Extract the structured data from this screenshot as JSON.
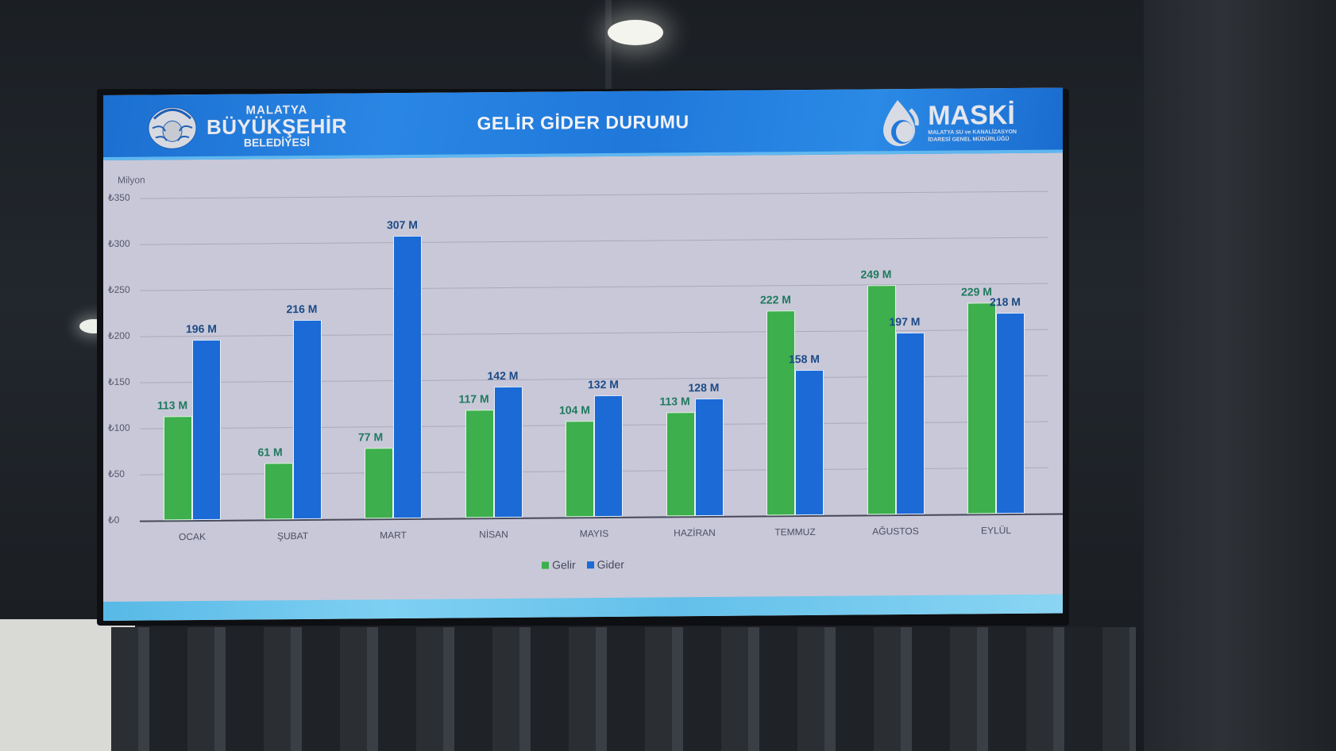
{
  "header": {
    "left_logo": {
      "line1": "MALATYA",
      "line2": "BÜYÜKŞEHİR",
      "line3": "BELEDİYESİ"
    },
    "title": "GELİR GİDER DURUMU",
    "right_logo": {
      "name": "MASKİ",
      "sub1": "MALATYA SU ve KANALİZASYON",
      "sub2": "İDARESİ GENEL MÜDÜRLÜĞÜ"
    }
  },
  "colors": {
    "gelir": "#3daf4c",
    "gider": "#1b6ad6",
    "header": "#1f78da"
  },
  "chart_data": {
    "type": "bar",
    "title": "GELİR GİDER DURUMU",
    "ylabel": "Milyon",
    "xlabel": "",
    "ylim": [
      0,
      350
    ],
    "yticks": [
      "₺0",
      "₺50",
      "₺100",
      "₺150",
      "₺200",
      "₺250",
      "₺300",
      "₺350"
    ],
    "grid": true,
    "legend_position": "bottom",
    "categories": [
      "OCAK",
      "ŞUBAT",
      "MART",
      "NİSAN",
      "MAYIS",
      "HAZİRAN",
      "TEMMUZ",
      "AĞUSTOS",
      "EYLÜL"
    ],
    "series": [
      {
        "name": "Gelir",
        "values": [
          113,
          61,
          77,
          117,
          104,
          113,
          222,
          249,
          229
        ],
        "labels": [
          "113 M",
          "61 M",
          "77 M",
          "117 M",
          "104 M",
          "113 M",
          "222 M",
          "249 M",
          "229 M"
        ]
      },
      {
        "name": "Gider",
        "values": [
          196,
          216,
          307,
          142,
          132,
          128,
          158,
          197,
          218
        ],
        "labels": [
          "196 M",
          "216 M",
          "307 M",
          "142 M",
          "132 M",
          "128 M",
          "158 M",
          "197 M",
          "218 M"
        ]
      }
    ]
  },
  "legend": [
    {
      "label": "Gelir"
    },
    {
      "label": "Gider"
    }
  ]
}
